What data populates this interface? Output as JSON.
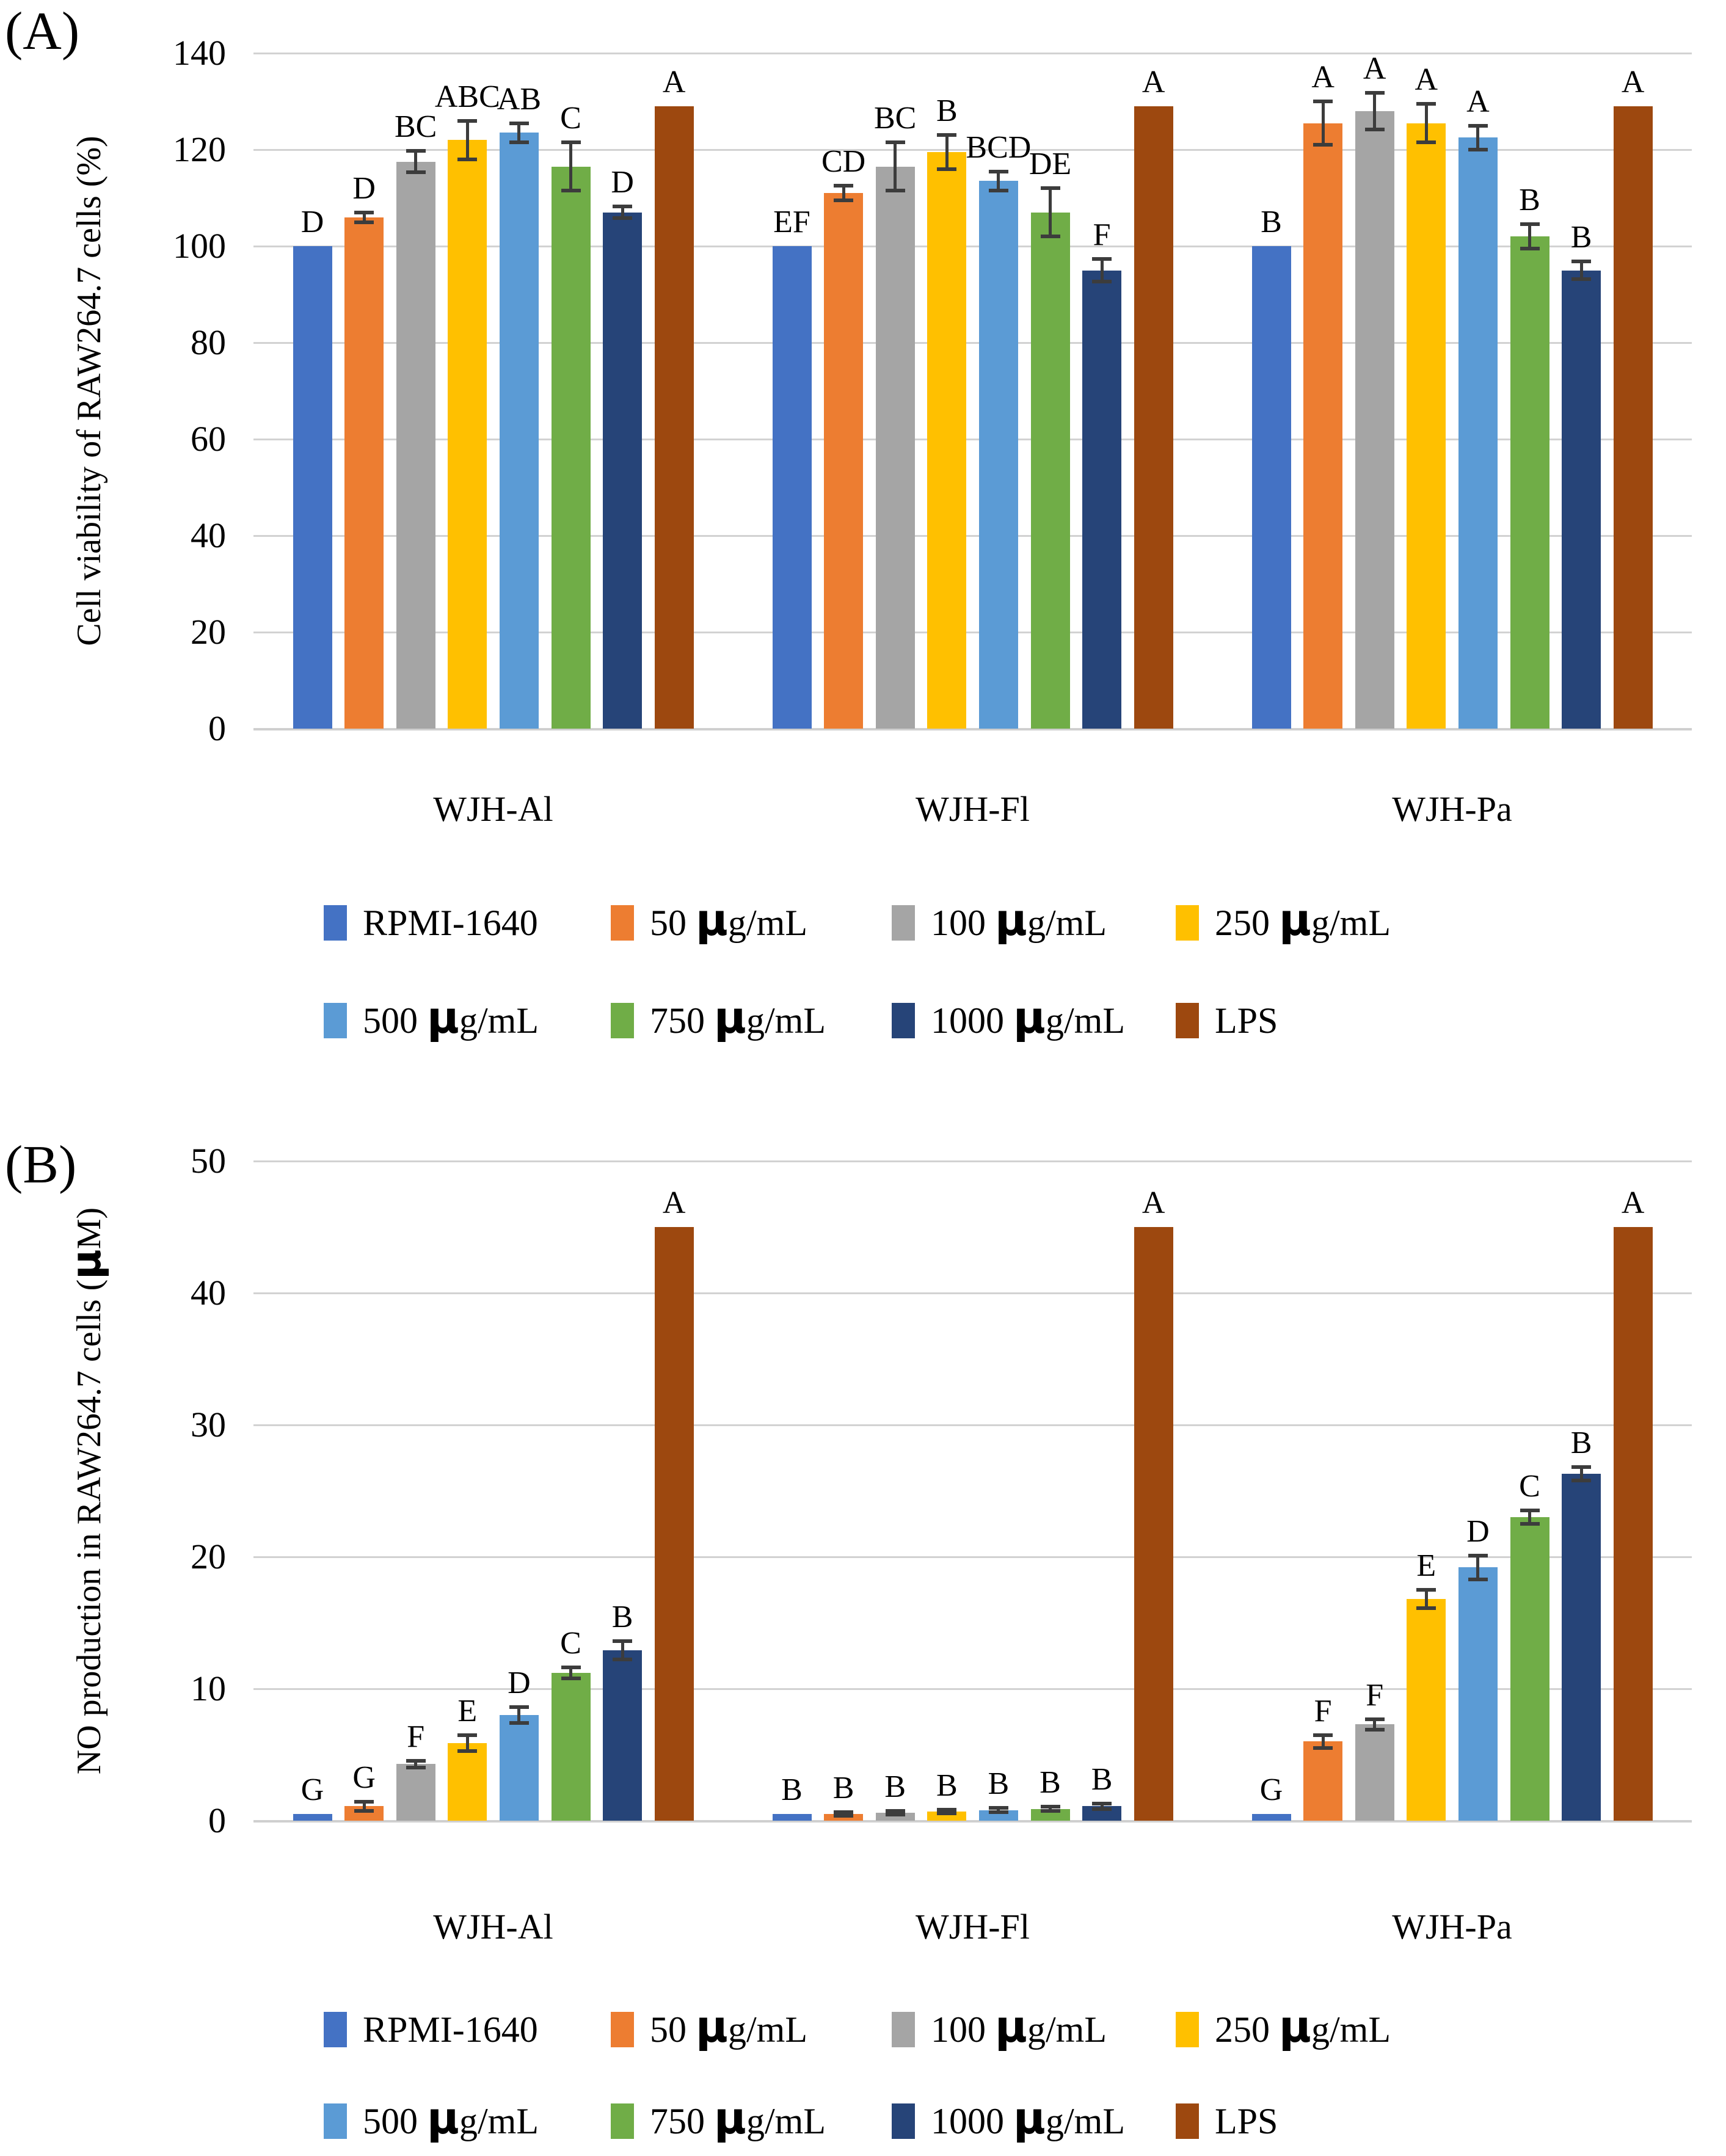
{
  "chart_data": [
    {
      "type": "bar",
      "panel_label": "(A)",
      "title": "",
      "xlabel": "",
      "ylabel": "Cell viability of RAW264.7 cells (%)",
      "ylim": [
        0,
        140
      ],
      "yticks": [
        140,
        120,
        100,
        80,
        60,
        40,
        20,
        0
      ],
      "grid": "horizontal",
      "legend_position": "bottom",
      "error_bars": true,
      "categories": [
        "WJH-Al",
        "WJH-Fl",
        "WJH-Pa"
      ],
      "series": [
        {
          "name": "RPMI-1640",
          "color": "#4472C4",
          "values": [
            100,
            100,
            100
          ],
          "errors": [
            0,
            0,
            0
          ],
          "letters": [
            "D",
            "EF",
            "B"
          ]
        },
        {
          "name": "50 µg/mL",
          "color": "#ED7D31",
          "values": [
            106,
            111,
            125.5
          ],
          "errors": [
            1,
            1.5,
            4.5
          ],
          "letters": [
            "D",
            "CD",
            "A"
          ]
        },
        {
          "name": "100 µg/mL",
          "color": "#A5A5A5",
          "values": [
            117.5,
            116.5,
            128
          ],
          "errors": [
            2.2,
            5,
            3.8
          ],
          "letters": [
            "BC",
            "BC",
            "A"
          ]
        },
        {
          "name": "250 µg/mL",
          "color": "#FFC000",
          "values": [
            122,
            119.5,
            125.5
          ],
          "errors": [
            4,
            3.5,
            4
          ],
          "letters": [
            "ABC",
            "B",
            "A"
          ]
        },
        {
          "name": "500 µg/mL",
          "color": "#5B9BD5",
          "values": [
            123.5,
            113.5,
            122.5
          ],
          "errors": [
            2,
            2,
            2.5
          ],
          "letters": [
            "AB",
            "BCD",
            "A"
          ]
        },
        {
          "name": "750 µg/mL",
          "color": "#70AD47",
          "values": [
            116.5,
            107,
            102
          ],
          "errors": [
            5,
            5,
            2.5
          ],
          "letters": [
            "C",
            "DE",
            "B"
          ]
        },
        {
          "name": "1000 µg/mL",
          "color": "#264478",
          "values": [
            107,
            95,
            95
          ],
          "errors": [
            1.2,
            2.3,
            1.8
          ],
          "letters": [
            "D",
            "F",
            "B"
          ]
        },
        {
          "name": "LPS",
          "color": "#9D480F",
          "values": [
            129,
            129,
            129
          ],
          "errors": [
            0,
            0,
            0
          ],
          "letters": [
            "A",
            "A",
            "A"
          ]
        }
      ],
      "legend_rows": [
        [
          "RPMI-1640",
          "50 µg/mL",
          "100 µg/mL",
          "250 µg/mL"
        ],
        [
          "500 µg/mL",
          "750 µg/mL",
          "1000 µg/mL",
          "LPS"
        ]
      ]
    },
    {
      "type": "bar",
      "panel_label": "(B)",
      "title": "",
      "xlabel": "",
      "ylabel": "NO production  in RAW264.7 cells (µM)",
      "ylim": [
        0,
        50
      ],
      "yticks": [
        50,
        40,
        30,
        20,
        10,
        0
      ],
      "grid": "horizontal",
      "legend_position": "bottom",
      "error_bars": true,
      "categories": [
        "WJH-Al",
        "WJH-Fl",
        "WJH-Pa"
      ],
      "series": [
        {
          "name": "RPMI-1640",
          "color": "#4472C4",
          "values": [
            0.5,
            0.5,
            0.5
          ],
          "errors": [
            0,
            0,
            0
          ],
          "letters": [
            "G",
            "B",
            "G"
          ]
        },
        {
          "name": "50 µg/mL",
          "color": "#ED7D31",
          "values": [
            1.1,
            0.5,
            6.0
          ],
          "errors": [
            0.35,
            0.15,
            0.5
          ],
          "letters": [
            "G",
            "B",
            "F"
          ]
        },
        {
          "name": "100 µg/mL",
          "color": "#A5A5A5",
          "values": [
            4.3,
            0.6,
            7.3
          ],
          "errors": [
            0.25,
            0.15,
            0.4
          ],
          "letters": [
            "F",
            "B",
            "F"
          ]
        },
        {
          "name": "250 µg/mL",
          "color": "#FFC000",
          "values": [
            5.9,
            0.7,
            16.8
          ],
          "errors": [
            0.6,
            0.15,
            0.7
          ],
          "letters": [
            "E",
            "B",
            "E"
          ]
        },
        {
          "name": "500 µg/mL",
          "color": "#5B9BD5",
          "values": [
            8.0,
            0.8,
            19.2
          ],
          "errors": [
            0.6,
            0.15,
            0.9
          ],
          "letters": [
            "D",
            "B",
            "D"
          ]
        },
        {
          "name": "750 µg/mL",
          "color": "#70AD47",
          "values": [
            11.2,
            0.9,
            23.0
          ],
          "errors": [
            0.4,
            0.15,
            0.5
          ],
          "letters": [
            "C",
            "B",
            "C"
          ]
        },
        {
          "name": "1000 µg/mL",
          "color": "#264478",
          "values": [
            12.9,
            1.1,
            26.3
          ],
          "errors": [
            0.7,
            0.2,
            0.5
          ],
          "letters": [
            "B",
            "B",
            "B"
          ]
        },
        {
          "name": "LPS",
          "color": "#9D480F",
          "values": [
            45,
            45,
            45
          ],
          "errors": [
            0,
            0,
            0
          ],
          "letters": [
            "A",
            "A",
            "A"
          ]
        }
      ],
      "legend_rows": [
        [
          "RPMI-1640",
          "50 µg/mL",
          "100 µg/mL",
          "250 µg/mL"
        ],
        [
          "500 µg/mL",
          "750 µg/mL",
          "1000 µg/mL",
          "LPS"
        ]
      ]
    }
  ]
}
